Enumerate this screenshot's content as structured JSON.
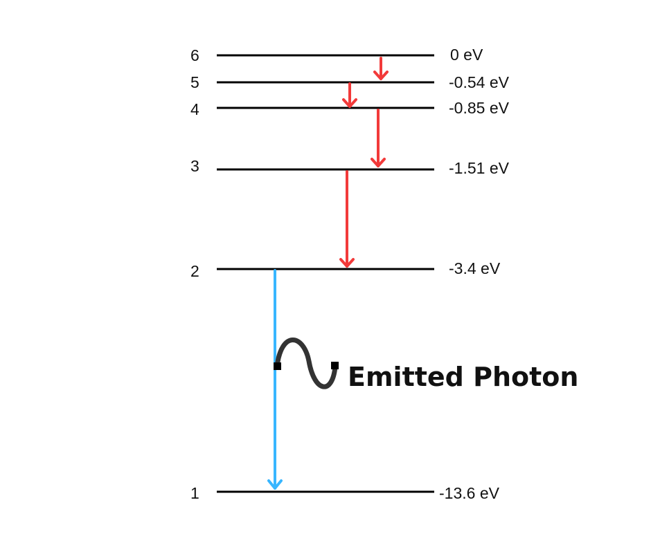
{
  "levels": [
    {
      "n": "6",
      "energy": "0 eV"
    },
    {
      "n": "5",
      "energy": "-0.54 eV"
    },
    {
      "n": "4",
      "energy": "-0.85 eV"
    },
    {
      "n": "3",
      "energy": "-1.51 eV"
    },
    {
      "n": "2",
      "energy": "-3.4 eV"
    },
    {
      "n": "1",
      "energy": "-13.6 eV"
    }
  ],
  "transitions": [
    {
      "from": "6",
      "to": "5",
      "color": "#f23a3a"
    },
    {
      "from": "5",
      "to": "4",
      "color": "#f23a3a"
    },
    {
      "from": "4",
      "to": "3",
      "color": "#f23a3a"
    },
    {
      "from": "3",
      "to": "2",
      "color": "#f23a3a"
    },
    {
      "from": "2",
      "to": "1",
      "color": "#38b6ff"
    }
  ],
  "photon": {
    "label": "Emitted Photon",
    "icon": "wavy-photon-icon",
    "color": "#333333"
  },
  "colors": {
    "line": "#000000",
    "cascade_arrow": "#f23a3a",
    "emission_arrow": "#38b6ff"
  }
}
